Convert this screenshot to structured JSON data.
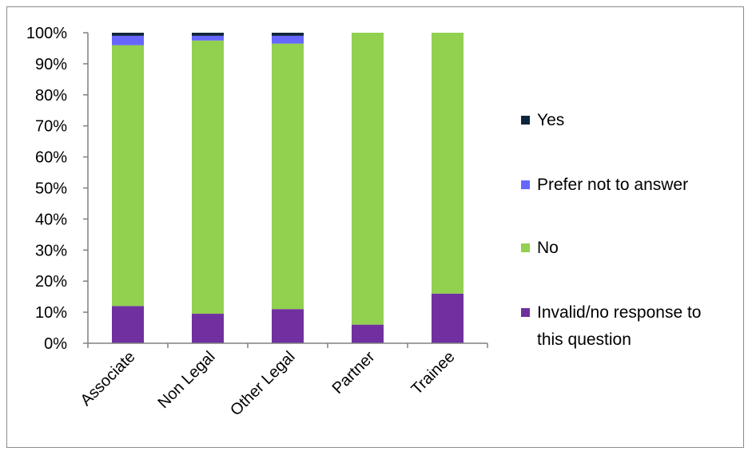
{
  "chart_data": {
    "type": "bar",
    "stacked": true,
    "categories": [
      "Associate",
      "Non Legal",
      "Other Legal",
      "Partner",
      "Trainee"
    ],
    "series": [
      {
        "name": "Invalid/no response to this question",
        "color": "#7030a0",
        "values": [
          12,
          9.5,
          11,
          6,
          16
        ]
      },
      {
        "name": "No",
        "color": "#92d050",
        "values": [
          84,
          88,
          85.5,
          94,
          84
        ]
      },
      {
        "name": "Prefer not to answer",
        "color": "#6666ff",
        "values": [
          3,
          1.5,
          2.5,
          0,
          0
        ]
      },
      {
        "name": "Yes",
        "color": "#0f243e",
        "values": [
          1,
          1,
          1,
          0,
          0
        ]
      }
    ],
    "y_ticks": [
      "0%",
      "10%",
      "20%",
      "30%",
      "40%",
      "50%",
      "60%",
      "70%",
      "80%",
      "90%",
      "100%"
    ],
    "ylim": [
      0,
      100
    ],
    "legend": {
      "position": "right",
      "order": [
        "Yes",
        "Prefer not to answer",
        "No",
        "Invalid/no response to this question"
      ]
    },
    "grid": false
  }
}
